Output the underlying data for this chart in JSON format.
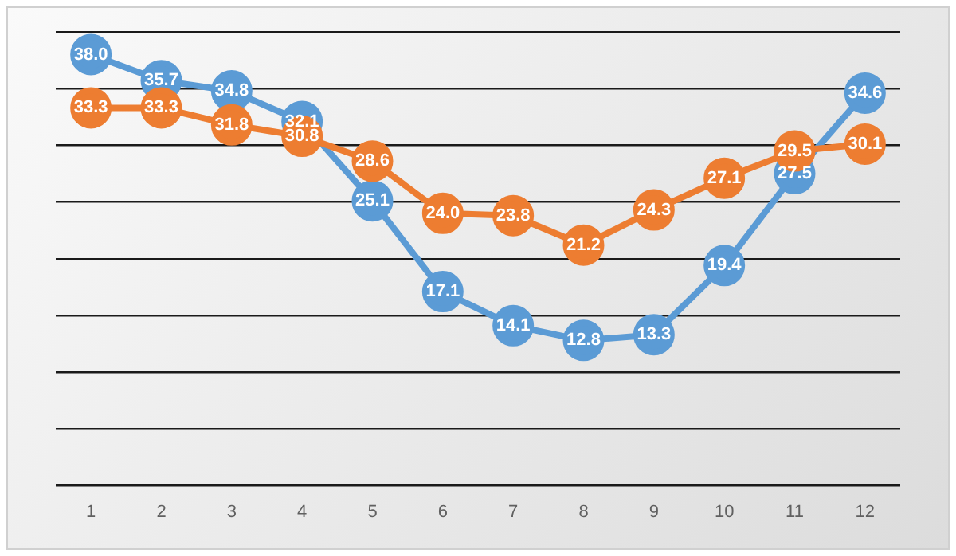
{
  "chart_data": {
    "type": "line",
    "x": [
      1,
      2,
      3,
      4,
      5,
      6,
      7,
      8,
      9,
      10,
      11,
      12
    ],
    "xlim": [
      0.5,
      12.5
    ],
    "xticks": [
      1,
      2,
      3,
      4,
      5,
      6,
      7,
      8,
      9,
      10,
      11,
      12
    ],
    "series": [
      {
        "color": "#5b9bd5",
        "values": [
          38.0,
          35.7,
          34.8,
          32.1,
          25.1,
          17.1,
          14.1,
          12.8,
          13.3,
          19.4,
          27.5,
          34.6
        ],
        "value_labels": [
          "38.0",
          "35.7",
          "34.8",
          "32.1",
          "25.1",
          "17.1",
          "14.1",
          "12.8",
          "13.3",
          "19.4",
          "27.5",
          "34.6"
        ]
      },
      {
        "color": "#ed7d31",
        "values": [
          33.3,
          33.3,
          31.8,
          30.8,
          28.6,
          24.0,
          23.8,
          21.2,
          24.3,
          27.1,
          29.5,
          30.1
        ],
        "value_labels": [
          "33.3",
          "33.3",
          "31.8",
          "30.8",
          "28.6",
          "24.0",
          "23.8",
          "21.2",
          "24.3",
          "27.1",
          "29.5",
          "30.1"
        ]
      }
    ],
    "ylim": [
      0,
      40
    ],
    "yticks": [
      0,
      5,
      10,
      15,
      20,
      25,
      30,
      35,
      40
    ],
    "tick_labels": "x",
    "grid": "y",
    "legend": false,
    "marker": "circle",
    "line_style": "solid",
    "data_labels": true
  }
}
